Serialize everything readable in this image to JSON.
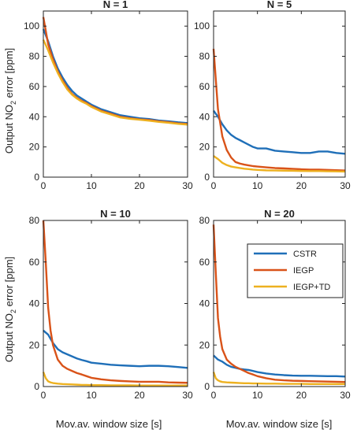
{
  "figure": {
    "ylabel_prefix": "Output NO",
    "ylabel_sub": "2",
    "ylabel_suffix": " error [ppm]",
    "xlabel": "Mov.av. window size [s]"
  },
  "colors": {
    "CSTR": "#1f6fb8",
    "IEGP": "#d95319",
    "IEGP+TD": "#edb120"
  },
  "legend": {
    "placement": "upper-right of bottom-right panel",
    "items": [
      "CSTR",
      "IEGP",
      "IEGP+TD"
    ]
  },
  "chart_data": [
    {
      "type": "line",
      "title": "N = 1",
      "xlim": [
        0,
        30
      ],
      "ylim": [
        0,
        110
      ],
      "xticks": [
        0,
        10,
        20,
        30
      ],
      "yticks": [
        0,
        20,
        40,
        60,
        80,
        100
      ],
      "x": [
        0,
        1,
        2,
        3,
        4,
        5,
        6,
        7,
        8,
        9,
        10,
        12,
        14,
        16,
        18,
        20,
        22,
        24,
        26,
        28,
        30
      ],
      "series": [
        {
          "name": "CSTR",
          "values": [
            98,
            90,
            80,
            72,
            66,
            61,
            57,
            54,
            52,
            50,
            48,
            45,
            43,
            41,
            40,
            39,
            38.5,
            37.5,
            37,
            36.3,
            35.8
          ]
        },
        {
          "name": "IEGP",
          "values": [
            106,
            88,
            78,
            70,
            64,
            59,
            55,
            52.5,
            50.5,
            49,
            47,
            44,
            42,
            40,
            39,
            38.3,
            37.8,
            37,
            36.4,
            35.6,
            35.2
          ]
        },
        {
          "name": "IEGP+TD",
          "values": [
            91,
            84,
            76,
            69,
            63,
            58,
            54.5,
            52,
            50,
            48.5,
            46.5,
            43.5,
            41.5,
            39.5,
            38.6,
            38,
            37.4,
            36.6,
            36,
            35.3,
            34.8
          ]
        }
      ]
    },
    {
      "type": "line",
      "title": "N = 5",
      "xlim": [
        0,
        30
      ],
      "ylim": [
        0,
        110
      ],
      "xticks": [
        0,
        10,
        20,
        30
      ],
      "yticks": [
        0,
        20,
        40,
        60,
        80,
        100
      ],
      "x": [
        0,
        1,
        2,
        3,
        4,
        5,
        6,
        7,
        8,
        9,
        10,
        12,
        14,
        16,
        18,
        20,
        22,
        24,
        26,
        28,
        30
      ],
      "series": [
        {
          "name": "CSTR",
          "values": [
            44,
            40,
            35,
            31,
            28,
            26,
            24.5,
            23,
            21.5,
            20,
            19,
            19,
            17.5,
            17,
            16.5,
            16,
            16,
            17,
            17,
            16,
            15.5
          ]
        },
        {
          "name": "IEGP",
          "values": [
            85,
            45,
            27,
            18,
            13,
            10,
            9,
            8.3,
            7.8,
            7.3,
            7,
            6.5,
            6,
            5.8,
            5.5,
            5.2,
            5,
            5,
            4.8,
            4.6,
            4.4
          ]
        },
        {
          "name": "IEGP+TD",
          "values": [
            14,
            12,
            9.5,
            8,
            7,
            6.5,
            6,
            5.6,
            5.3,
            5,
            4.8,
            4.5,
            4.4,
            4.3,
            4.2,
            4.1,
            4,
            4,
            3.9,
            3.8,
            3.7
          ]
        }
      ]
    },
    {
      "type": "line",
      "title": "N = 10",
      "xlim": [
        0,
        30
      ],
      "ylim": [
        0,
        80
      ],
      "xticks": [
        0,
        10,
        20,
        30
      ],
      "yticks": [
        0,
        20,
        40,
        60,
        80
      ],
      "x": [
        0,
        0.5,
        1,
        1.5,
        2,
        3,
        4,
        5,
        6,
        7,
        8,
        9,
        10,
        12,
        14,
        16,
        18,
        20,
        22,
        24,
        26,
        28,
        30
      ],
      "series": [
        {
          "name": "CSTR",
          "values": [
            27,
            26,
            25,
            23,
            21,
            18,
            16.5,
            15.5,
            14.5,
            13.5,
            12.8,
            12.2,
            11.5,
            11,
            10.5,
            10.2,
            10,
            9.8,
            10,
            10,
            9.8,
            9.4,
            9
          ]
        },
        {
          "name": "IEGP",
          "values": [
            80,
            60,
            38,
            27,
            20,
            13,
            10,
            8.5,
            7.5,
            6.5,
            5.8,
            5,
            4.2,
            3.5,
            3,
            2.7,
            2.5,
            2.3,
            2.3,
            2.3,
            2,
            1.9,
            1.8
          ]
        },
        {
          "name": "IEGP+TD",
          "values": [
            7,
            4,
            2.5,
            2,
            1.7,
            1.4,
            1.2,
            1.1,
            1,
            0.9,
            0.8,
            0.8,
            0.7,
            0.7,
            0.6,
            0.6,
            0.6,
            0.5,
            0.5,
            0.5,
            0.5,
            0.5,
            0.5
          ]
        }
      ]
    },
    {
      "type": "line",
      "title": "N = 20",
      "xlim": [
        0,
        30
      ],
      "ylim": [
        0,
        80
      ],
      "xticks": [
        0,
        10,
        20,
        30
      ],
      "yticks": [
        0,
        20,
        40,
        60,
        80
      ],
      "x": [
        0,
        0.5,
        1,
        1.5,
        2,
        3,
        4,
        5,
        6,
        7,
        8,
        9,
        10,
        12,
        14,
        16,
        18,
        20,
        22,
        24,
        26,
        28,
        30
      ],
      "series": [
        {
          "name": "CSTR",
          "values": [
            15,
            14,
            13,
            12.5,
            12,
            10.5,
            9.5,
            9,
            8.5,
            8.2,
            8,
            7.5,
            7,
            6.3,
            5.8,
            5.5,
            5.3,
            5.2,
            5.2,
            5.1,
            5,
            5,
            4.8
          ]
        },
        {
          "name": "IEGP",
          "values": [
            78,
            55,
            33,
            24,
            18,
            13,
            11,
            9.5,
            8.5,
            7.5,
            6.5,
            5.8,
            5,
            4,
            3.3,
            3,
            2.8,
            2.7,
            2.6,
            2.5,
            2.4,
            2.3,
            2.2
          ]
        },
        {
          "name": "IEGP+TD",
          "values": [
            7,
            4,
            3,
            2.5,
            2.2,
            2,
            1.9,
            1.8,
            1.7,
            1.6,
            1.6,
            1.5,
            1.5,
            1.4,
            1.4,
            1.3,
            1.3,
            1.3,
            1.2,
            1.2,
            1.2,
            1.2,
            1.2
          ]
        }
      ]
    }
  ]
}
